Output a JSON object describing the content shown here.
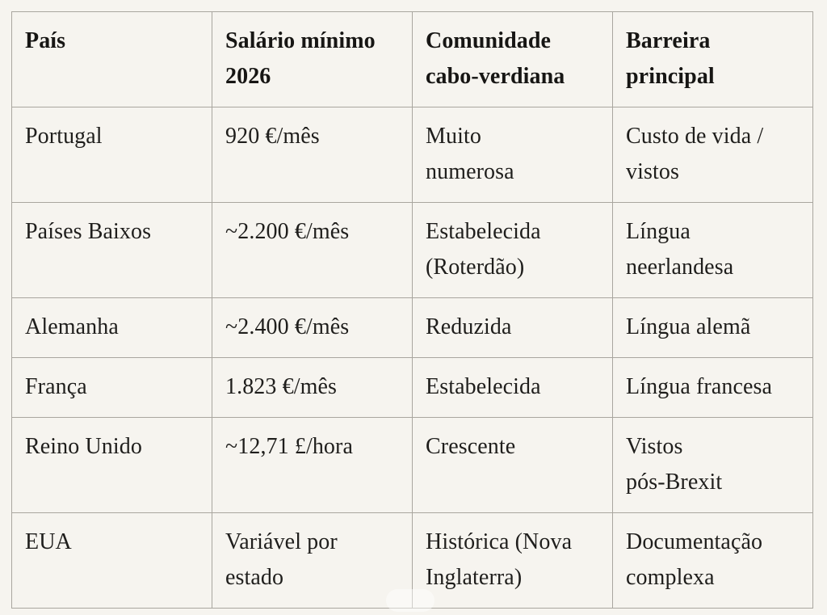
{
  "colors": {
    "page_background": "#F6F4EF",
    "cell_background": "#F6F4EF",
    "grid_border": "#A9A69F",
    "text": "#1F1E1C"
  },
  "table": {
    "columns": [
      "País",
      "Salário mínimo\n2026",
      "Comunidade\ncabo-verdiana",
      "Barreira\nprincipal"
    ],
    "rows": [
      [
        "Portugal",
        "920 €/mês",
        "Muito\nnumerosa",
        "Custo de vida /\nvistos"
      ],
      [
        "Países Baixos",
        "~2.200 €/mês",
        "Estabelecida\n(Roterdão)",
        "Língua\nneerlandesa"
      ],
      [
        "Alemanha",
        "~2.400 €/mês",
        "Reduzida",
        "Língua alemã"
      ],
      [
        "França",
        "1.823 €/mês",
        "Estabelecida",
        "Língua francesa"
      ],
      [
        "Reino Unido",
        "~12,71 £/hora",
        "Crescente",
        "Vistos\npós-Brexit"
      ],
      [
        "EUA",
        "Variável por\nestado",
        "Histórica (Nova\nInglaterra)",
        "Documentação\ncomplexa"
      ]
    ]
  }
}
